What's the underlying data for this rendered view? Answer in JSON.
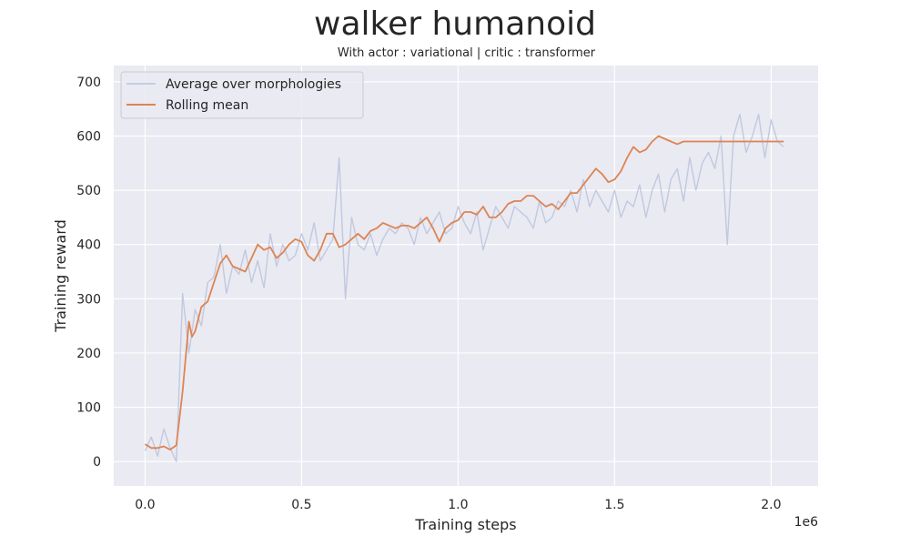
{
  "chart_data": {
    "type": "line",
    "title": "walker humanoid",
    "subtitle": "With actor : variational | critic : transformer",
    "xlabel": "Training steps",
    "ylabel": "Training reward",
    "x_offset_label": "1e6",
    "xlim": [
      -0.1,
      2.15
    ],
    "ylim": [
      -45,
      730
    ],
    "xticks": [
      0.0,
      0.5,
      1.0,
      1.5,
      2.0
    ],
    "xtick_labels": [
      "0.0",
      "0.5",
      "1.0",
      "1.5",
      "2.0"
    ],
    "yticks": [
      0,
      100,
      200,
      300,
      400,
      500,
      600,
      700
    ],
    "ytick_labels": [
      "0",
      "100",
      "200",
      "300",
      "400",
      "500",
      "600",
      "700"
    ],
    "grid": true,
    "legend_position": "top-left",
    "colors": {
      "average": "#b8c3dc",
      "rolling": "#dd8452",
      "plot_bg": "#eaeaf2",
      "grid": "#ffffff"
    },
    "series": [
      {
        "name": "Average over morphologies",
        "x": [
          0.0,
          0.02,
          0.04,
          0.06,
          0.08,
          0.1,
          0.12,
          0.14,
          0.16,
          0.18,
          0.2,
          0.22,
          0.24,
          0.26,
          0.28,
          0.3,
          0.32,
          0.34,
          0.36,
          0.38,
          0.4,
          0.42,
          0.44,
          0.46,
          0.48,
          0.5,
          0.52,
          0.54,
          0.56,
          0.58,
          0.6,
          0.62,
          0.64,
          0.66,
          0.68,
          0.7,
          0.72,
          0.74,
          0.76,
          0.78,
          0.8,
          0.82,
          0.84,
          0.86,
          0.88,
          0.9,
          0.92,
          0.94,
          0.96,
          0.98,
          1.0,
          1.02,
          1.04,
          1.06,
          1.08,
          1.1,
          1.12,
          1.14,
          1.16,
          1.18,
          1.2,
          1.22,
          1.24,
          1.26,
          1.28,
          1.3,
          1.32,
          1.34,
          1.36,
          1.38,
          1.4,
          1.42,
          1.44,
          1.46,
          1.48,
          1.5,
          1.52,
          1.54,
          1.56,
          1.58,
          1.6,
          1.62,
          1.64,
          1.66,
          1.68,
          1.7,
          1.72,
          1.74,
          1.76,
          1.78,
          1.8,
          1.82,
          1.84,
          1.86,
          1.88,
          1.9,
          1.92,
          1.94,
          1.96,
          1.98,
          2.0,
          2.02,
          2.04
        ],
        "y": [
          20,
          45,
          10,
          60,
          25,
          0,
          310,
          200,
          280,
          250,
          330,
          340,
          400,
          310,
          360,
          345,
          390,
          330,
          370,
          320,
          420,
          360,
          400,
          370,
          380,
          420,
          390,
          440,
          370,
          390,
          410,
          560,
          300,
          450,
          400,
          390,
          420,
          380,
          410,
          430,
          420,
          440,
          430,
          400,
          450,
          420,
          440,
          460,
          420,
          430,
          470,
          440,
          420,
          460,
          390,
          430,
          470,
          450,
          430,
          470,
          460,
          450,
          430,
          480,
          440,
          450,
          480,
          470,
          500,
          460,
          520,
          470,
          500,
          480,
          460,
          500,
          450,
          480,
          470,
          510,
          450,
          500,
          530,
          460,
          520,
          540,
          480,
          560,
          500,
          550,
          570,
          540,
          600,
          400,
          600,
          640,
          570,
          600,
          640,
          560,
          630,
          590,
          580
        ]
      },
      {
        "name": "Rolling mean",
        "x": [
          0.0,
          0.02,
          0.04,
          0.06,
          0.08,
          0.1,
          0.12,
          0.14,
          0.15,
          0.16,
          0.18,
          0.2,
          0.22,
          0.24,
          0.26,
          0.28,
          0.3,
          0.32,
          0.34,
          0.36,
          0.38,
          0.4,
          0.42,
          0.44,
          0.46,
          0.48,
          0.5,
          0.52,
          0.54,
          0.56,
          0.58,
          0.6,
          0.62,
          0.64,
          0.66,
          0.68,
          0.7,
          0.72,
          0.74,
          0.76,
          0.78,
          0.8,
          0.82,
          0.84,
          0.86,
          0.88,
          0.9,
          0.92,
          0.94,
          0.96,
          0.98,
          1.0,
          1.02,
          1.04,
          1.06,
          1.08,
          1.1,
          1.12,
          1.14,
          1.16,
          1.18,
          1.2,
          1.22,
          1.24,
          1.26,
          1.28,
          1.3,
          1.32,
          1.34,
          1.36,
          1.38,
          1.4,
          1.42,
          1.44,
          1.46,
          1.48,
          1.5,
          1.52,
          1.54,
          1.56,
          1.58,
          1.6,
          1.62,
          1.64,
          1.66,
          1.68,
          1.7,
          1.72,
          1.74,
          1.76,
          1.78,
          1.8,
          1.82,
          1.84,
          1.86,
          1.88,
          1.9,
          1.92,
          1.94,
          1.96,
          1.98,
          2.0,
          2.02,
          2.04
        ],
        "y": [
          32,
          25,
          25,
          28,
          22,
          30,
          130,
          258,
          230,
          240,
          285,
          295,
          330,
          365,
          380,
          360,
          355,
          350,
          375,
          400,
          390,
          395,
          375,
          385,
          400,
          410,
          405,
          380,
          370,
          390,
          420,
          420,
          395,
          400,
          410,
          420,
          410,
          425,
          430,
          440,
          435,
          430,
          435,
          435,
          430,
          440,
          450,
          430,
          405,
          430,
          440,
          445,
          460,
          460,
          455,
          470,
          450,
          450,
          460,
          475,
          480,
          480,
          490,
          490,
          480,
          470,
          475,
          465,
          480,
          495,
          495,
          510,
          525,
          540,
          530,
          515,
          520,
          535,
          560,
          580,
          570,
          575,
          590,
          600,
          595,
          590,
          585,
          590,
          590,
          590,
          590,
          590,
          590,
          590,
          590,
          590,
          590,
          590,
          590,
          590,
          590,
          590,
          590,
          590
        ]
      }
    ]
  }
}
